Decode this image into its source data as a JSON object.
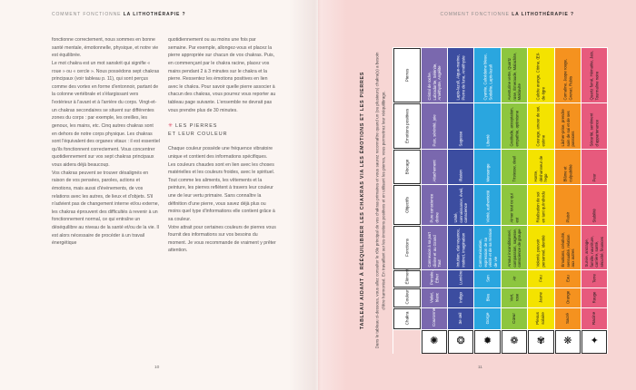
{
  "spread": {
    "running_head_prefix": "COMMENT FONCTIONNE",
    "running_head_title": "LA LITHOTHÉRAPIE ?",
    "left_page_number": "10",
    "right_page_number": "11"
  },
  "left_page": {
    "column1_paragraphs": [
      "fonctionne correctement, nous sommes en bonne santé mentale, émotionnelle, physique, et notre vie est équilibrée.",
      "Le mot chakra est un mot sanskrit qui signifie « roue » ou « cercle ». Nous possédons sept chakras principaux (voir tableau p. 11), qui sont perçus comme des vortex en forme d'entonnoir, partant de la colonne vertébrale et s'élargissant vers l'extérieur à l'avant et à l'arrière du corps. Vingt-et-un chakras secondaires se situent sur différentes zones du corps : par exemple, les oreilles, les genoux, les mains, etc. Cinq autres chakras sont en dehors de notre corps physique. Les chakras sont l'équivalent des organes vitaux : il est essentiel qu'ils fonctionnent correctement. Vous concentrer quotidiennement sur vos sept chakras principaux vous aidera déjà beaucoup.",
      "Vos chakras peuvent se trouver désalignés en raison de vos pensées, paroles, actions et émotions, mais aussi d'événements, de vos relations avec les autres, de lieux et d'objets. S'il n'advient pas de changement interne et/ou externe, les chakras éprouvent des difficultés à revenir à un fonctionnement normal, ce qui entraîne un déséquilibre au niveau de la santé et/ou de la vie. Il est alors nécessaire de procéder à un travail énergétique"
    ],
    "column2_top_paragraphs": [
      "quotidiennement ou au moins une fois par semaine. Par exemple, allongez-vous et placez la pierre appropriée sur chacun de vos chakras. Puis, en commençant par le chakra racine, placez vos mains pendant 2 à 3 minutes sur le chakra et la pierre. Ressentez les émotions positives en lien avec le chakra. Pour savoir quelle pierre associer à chacun des chakras, vous pourrez vous reporter au tableau page suivante. L'ensemble ne devrait pas vous prendre plus de 30 minutes."
    ],
    "section_heading": {
      "marker": "✳",
      "line1": "LES PIERRES",
      "line2": "ET LEUR COULEUR"
    },
    "column2_bottom_paragraphs": [
      "Chaque couleur possède une fréquence vibratoire unique et contient des informations spécifiques. Les couleurs chaudes sont en lien avec les choses matérielles et les couleurs froides, avec le spirituel.",
      "Tout comme les aliments, les vêtements et la peinture, les pierres reflètent à travers leur couleur une de leur vertu primaire. Sans connaître la définition d'une pierre, vous savez déjà plus ou moins quel type d'informations elle contient grâce à sa couleur.",
      "Votre attrait pour certaines couleurs de pierres vous fournit des informations sur vos besoins du moment. Je vous recommande de vraiment y prêter attention."
    ]
  },
  "right_page": {
    "sidebar_title": "TABLEAU AIDANT À RÉÉQUILIBRER LES CHAKRAS VIA LES ÉMOTIONS ET LES PIERRES",
    "sidebar_intro": "Dans le tableau ci-dessous, vous allez consulter le rôle principal de vos chakras primaires et vous saurez reconnaître quand un (ou plusieurs) chakra(s) a besoin d'être harmonisé. En travaillant sur les émotions positives et en utilisant les pierres, vous permettrez leur rééquilibrage.",
    "table": {
      "row_labels": {
        "pierres": "Pierres",
        "emotions": "Émotions positives",
        "blocage": "Blocage",
        "objectifs": "Objectifs",
        "fonctions": "Fonctions",
        "element": "Élément",
        "couleur": "Couleur",
        "chakra": "Chakra"
      },
      "columns": [
        {
          "chakra": "Couronne",
          "hex": "#7a68ae",
          "text_color": "#ffffff",
          "symbol": "✺",
          "couleur": "Violet, blanc",
          "element": "Pensée, Éther",
          "fonctions": "Connexion à sa part divine et au Grand Tout",
          "objectifs": "Pure conscience divine",
          "blocage": "Attachement",
          "emotions": "Paix, sérénité, joie",
          "pierres": "Cristal de roche, Labradorite, Sélénite, Améthyste, Angélite"
        },
        {
          "chakra": "3e œil",
          "hex": "#3c4da0",
          "text_color": "#ffffff",
          "symbol": "❂",
          "couleur": "Indigo",
          "element": "Lumière",
          "fonctions": "Intuition, clairvoyance, instinct, imagination",
          "objectifs": "Unité, connaissance, éveil, conscience",
          "blocage": "Illusion",
          "emotions": "Sagesse",
          "pierres": "Lapis-lazuli, Aigue-marine, Pierre de lune, Améthyste"
        },
        {
          "chakra": "Gorge",
          "hex": "#2aa6df",
          "text_color": "#ffffff",
          "symbol": "✹",
          "couleur": "Bleu",
          "element": "Son",
          "fonctions": "Communication, expression de sa vérité et de sa mission de vie",
          "objectifs": "Vérité, authenticité",
          "blocage": "Mensonge",
          "emotions": "Liberté",
          "pierres": "Cyanite, Calcédoine bleue, Sodalite, Lapis-lazuli"
        },
        {
          "chakra": "Cœur",
          "hex": "#8dc63f",
          "text_color": "#1d1d1d",
          "symbol": "❁",
          "couleur": "Vert, rose",
          "element": "Air",
          "fonctions": "Amour inconditionnel, compassion, sagesse, conscience de groupe",
          "objectifs": "Aimer tout ce qui est",
          "blocage": "Tristesse, deuil",
          "emotions": "Gratitude, acceptation, empathie, optimisme",
          "pierres": "Aventurine verte, Quartz rose, Émeraude, Malachite, Moldavite"
        },
        {
          "chakra": "Plexus solaire",
          "hex": "#f4e300",
          "text_color": "#1d1d1d",
          "symbol": "✾",
          "couleur": "Jaune",
          "element": "Feu",
          "fonctions": "Volonté, pouvoir personnel, identité",
          "objectifs": "Réalisation de soi en tant qu'individu",
          "blocage": "Honte, déshonneur de l'ego",
          "emotions": "Courage, amour de soi, estime",
          "pierres": "Calcite orange, Citrine, Œil-de-tigre"
        },
        {
          "chakra": "Sacré",
          "hex": "#f5921f",
          "text_color": "#1d1d1d",
          "symbol": "❋",
          "couleur": "Orange",
          "element": "Eau",
          "fonctions": "Émotions, créativité, sensualité, relation aux autres",
          "objectifs": "Plaisir",
          "blocage": "Blâme et culpabilité",
          "emotions": "Lâcher-prise, prendre soin de soi et de ses passions",
          "pierres": "Cornaline, Jaspe rouge, Grenat, Rubis"
        },
        {
          "chakra": "Racine",
          "hex": "#e75a7d",
          "text_color": "#1d1d1d",
          "symbol": "✦",
          "couleur": "Rouge",
          "element": "Terre",
          "fonctions": "Survie, ancrage, famille, nourriture, carrière, santé, sécurité, finances",
          "objectifs": "Stabilité",
          "blocage": "Peur",
          "emotions": "Sécurité, sentiment d'appartenance",
          "pierres": "Quartz fumé, Hématite, Jais, Tourmaline noire"
        }
      ]
    }
  }
}
